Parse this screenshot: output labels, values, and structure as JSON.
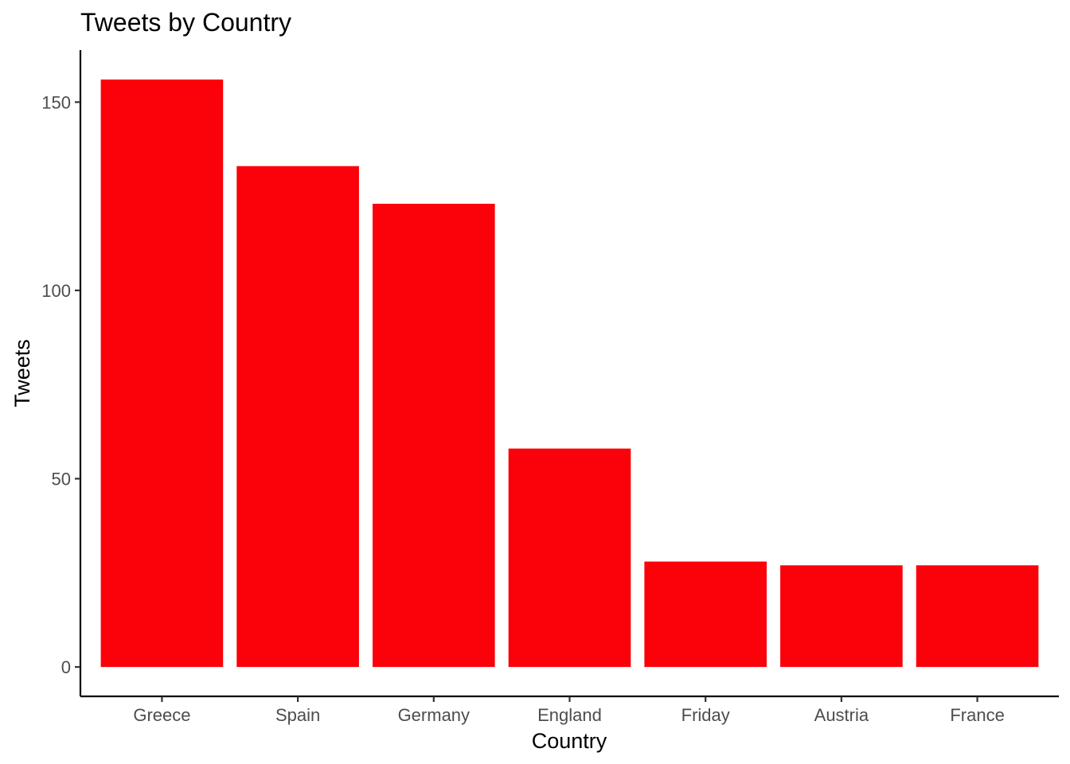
{
  "chart_data": {
    "type": "bar",
    "title": "Tweets by Country",
    "xlabel": "Country",
    "ylabel": "Tweets",
    "categories": [
      "Greece",
      "Spain",
      "Germany",
      "England",
      "Friday",
      "Austria",
      "France"
    ],
    "values": [
      156,
      133,
      123,
      58,
      28,
      27,
      27
    ],
    "ylim": [
      -7.8,
      163.8
    ],
    "yticks": [
      0,
      50,
      100,
      150
    ],
    "bar_color": "#FB010A",
    "grid": false,
    "legend": "none"
  }
}
